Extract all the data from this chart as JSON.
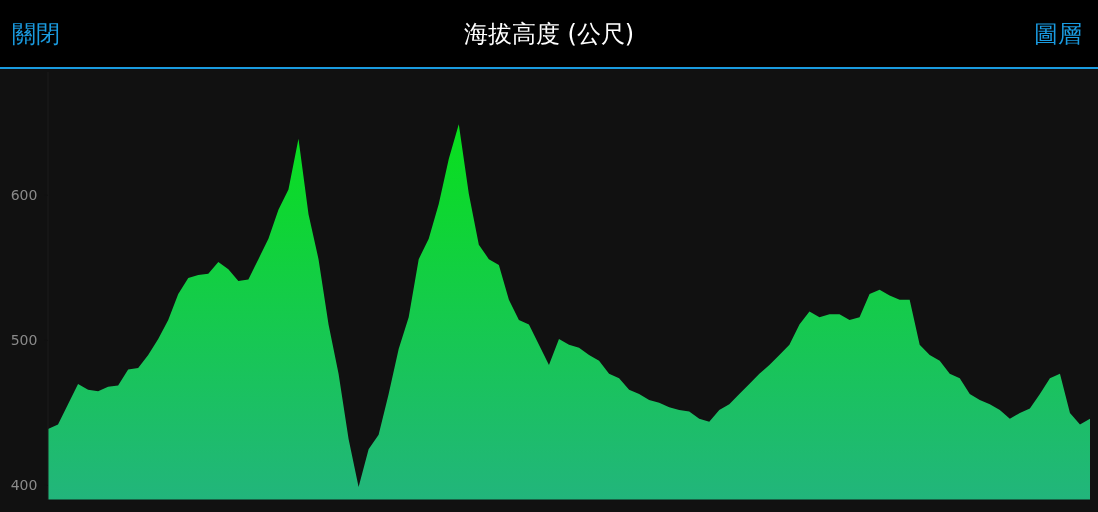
{
  "chart_data": {
    "type": "area",
    "title": "海拔高度 (公尺)",
    "annotations": [
      "關閉",
      "圖層"
    ],
    "categories": [
      null,
      null,
      null,
      null,
      null,
      null,
      null,
      null,
      null,
      null,
      null,
      null,
      null,
      null,
      null,
      null,
      null,
      null,
      null,
      null,
      null,
      null,
      null,
      null,
      null,
      null,
      null,
      null,
      null,
      null,
      null,
      null,
      null,
      null,
      null,
      null,
      null,
      null,
      null,
      null,
      null,
      null,
      null,
      null,
      null,
      null,
      null,
      null,
      null,
      null,
      null,
      null,
      null,
      null,
      null,
      null,
      null,
      null,
      null,
      null,
      null,
      null,
      null,
      null,
      null,
      null,
      null,
      null,
      null,
      null,
      null,
      null,
      null,
      null,
      null,
      null,
      null,
      null,
      null,
      null,
      null,
      null,
      null,
      null,
      null,
      null,
      null,
      null,
      null,
      null,
      null,
      null,
      null,
      null,
      null,
      null,
      null,
      null,
      null,
      null,
      null,
      null,
      null,
      null,
      null
    ],
    "series": [
      {
        "color": "#08e01c",
        "values": [
          439,
          442,
          456,
          470,
          466,
          465,
          468,
          469,
          480,
          481,
          490,
          501,
          514,
          532,
          543,
          545,
          546,
          554,
          549,
          541,
          542,
          556,
          570,
          590,
          604,
          639,
          587,
          556,
          511,
          477,
          432,
          399,
          425,
          435,
          463,
          494,
          516,
          556,
          570,
          594,
          625,
          649,
          601,
          566,
          556,
          552,
          528,
          514,
          511,
          497,
          483,
          501,
          497,
          495,
          490,
          486,
          477,
          474,
          466,
          463,
          459,
          457,
          454,
          452,
          451,
          446,
          444,
          452,
          456,
          463,
          470,
          477,
          483,
          490,
          497,
          511,
          520,
          516,
          518,
          518,
          514,
          516,
          532,
          535,
          531,
          528,
          528,
          497,
          490,
          486,
          477,
          474,
          463,
          459,
          456,
          452,
          446,
          450,
          453,
          463,
          474,
          477,
          450,
          442,
          446
        ]
      }
    ],
    "ylim": [
      390,
      685
    ],
    "yticks": [
      400,
      500,
      600
    ],
    "grid": false
  }
}
